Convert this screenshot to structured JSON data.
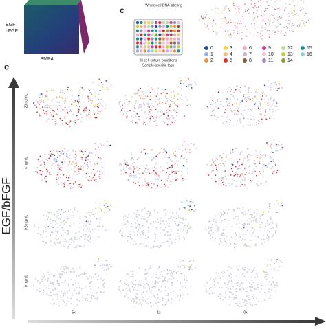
{
  "cube": {
    "labels": [
      "EGF",
      "bFGF"
    ],
    "x_label": "BMP4"
  },
  "panel_c": {
    "letter": "c",
    "top_label": "Whole-cell DNA labeling",
    "bottom_lines": [
      "96 cell culture conditions",
      "Sample-specific tags"
    ]
  },
  "legend": {
    "items": [
      {
        "label": "0",
        "color": "#1f4e9c"
      },
      {
        "label": "1",
        "color": "#8fb3e0"
      },
      {
        "label": "2",
        "color": "#e8923a"
      },
      {
        "label": "3",
        "color": "#f1d23f"
      },
      {
        "label": "4",
        "color": "#f6b77a"
      },
      {
        "label": "5",
        "color": "#d9302a"
      },
      {
        "label": "6",
        "color": "#f2a7c4"
      },
      {
        "label": "7",
        "color": "#c9b3de"
      },
      {
        "label": "8",
        "color": "#8c5a3c"
      },
      {
        "label": "9",
        "color": "#c83e9a"
      },
      {
        "label": "10",
        "color": "#f4c2d8"
      },
      {
        "label": "11",
        "color": "#9a8fb0"
      },
      {
        "label": "12",
        "color": "#b8dfa0"
      },
      {
        "label": "13",
        "color": "#c9cf3a"
      },
      {
        "label": "14",
        "color": "#8e9a3a"
      },
      {
        "label": "15",
        "color": "#1f8f8a"
      },
      {
        "label": "16",
        "color": "#8fd4cf"
      }
    ]
  },
  "panel_e": {
    "letter": "e",
    "y_axis_label": "EGF/bFGF",
    "rows": [
      "20 ng/mL",
      "4 ng/mL",
      "0.8 ng/mL",
      "0 ng/mL"
    ],
    "columns": [
      "5x",
      "1x",
      "0x"
    ]
  }
}
